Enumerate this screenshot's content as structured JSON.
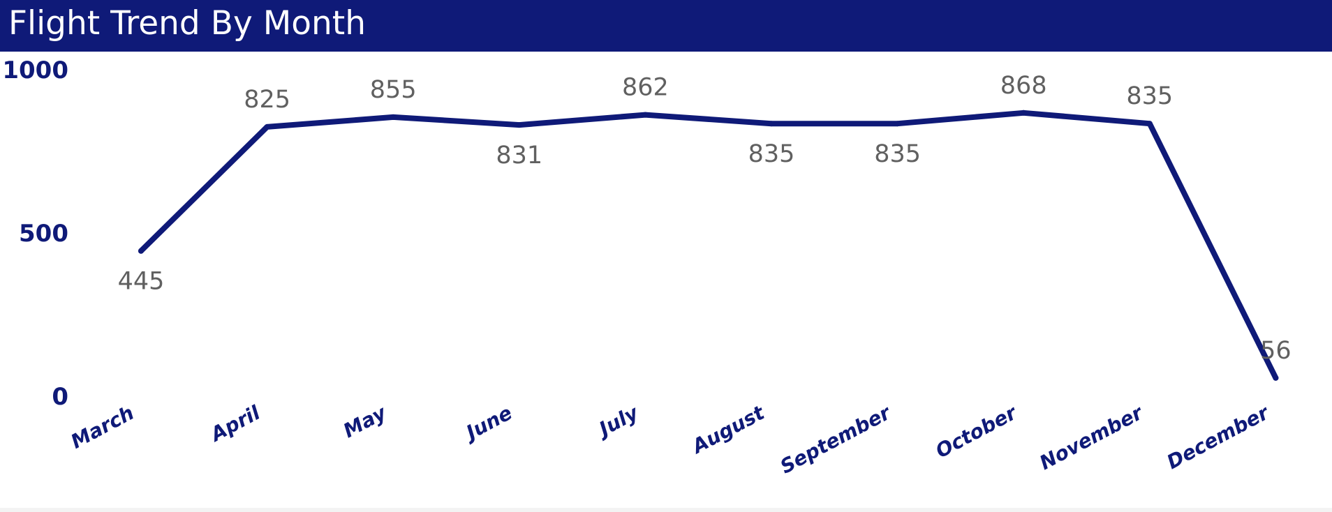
{
  "colors": {
    "header": "#0f1a78",
    "line": "#0f1a78",
    "data_label": "#606060",
    "background": "#ffffff"
  },
  "chart_data": {
    "type": "line",
    "title": "Flight Trend By Month",
    "categories": [
      "March",
      "April",
      "May",
      "June",
      "July",
      "August",
      "September",
      "October",
      "November",
      "December"
    ],
    "series": [
      {
        "values": [
          445,
          825,
          855,
          831,
          862,
          835,
          835,
          868,
          835,
          56
        ]
      }
    ],
    "y_ticks": [
      "0",
      "500",
      "1000"
    ],
    "ylim": [
      0,
      1000
    ],
    "data_labels": [
      "445",
      "825",
      "855",
      "831",
      "862",
      "835",
      "835",
      "868",
      "835",
      "56"
    ],
    "data_label_position": [
      "below",
      "above",
      "above",
      "below",
      "above",
      "below",
      "below",
      "above",
      "above",
      "above"
    ],
    "grid": false,
    "legend": "none"
  }
}
